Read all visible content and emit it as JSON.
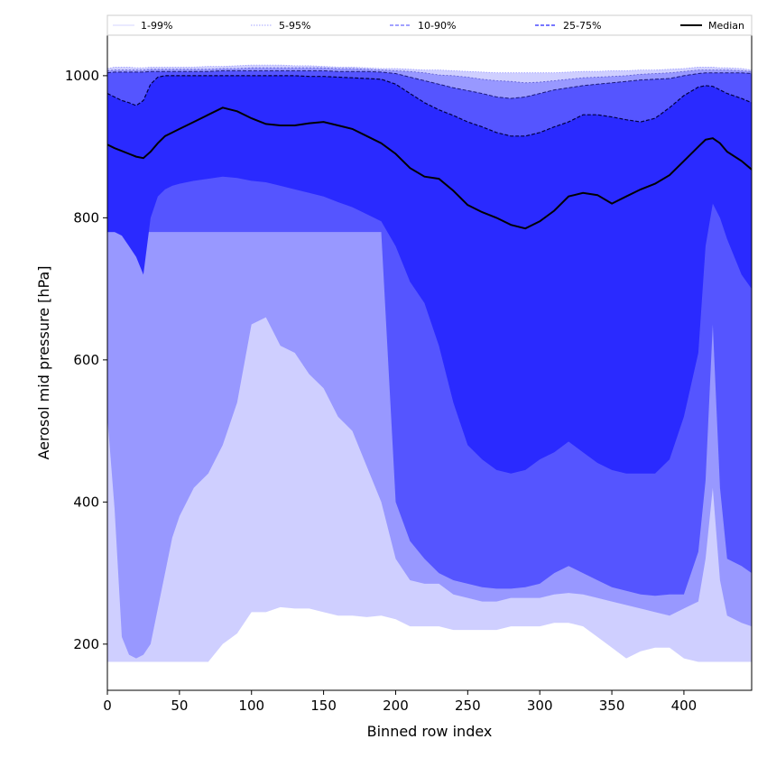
{
  "chart_data": {
    "type": "area",
    "title": "",
    "xlabel": "Binned row index",
    "ylabel": "Aerosol mid pressure [hPa]",
    "xlim": [
      0,
      447
    ],
    "ylim": [
      135,
      1057
    ],
    "xticks": [
      0,
      50,
      100,
      150,
      200,
      250,
      300,
      350,
      400
    ],
    "yticks": [
      200,
      400,
      600,
      800,
      1000
    ],
    "grid": false,
    "legend_position": "top",
    "x": [
      0,
      5,
      10,
      15,
      20,
      25,
      30,
      35,
      40,
      45,
      50,
      60,
      70,
      80,
      90,
      100,
      110,
      120,
      130,
      140,
      150,
      160,
      170,
      180,
      190,
      200,
      210,
      220,
      230,
      240,
      250,
      260,
      270,
      280,
      290,
      300,
      310,
      320,
      330,
      340,
      350,
      360,
      370,
      380,
      390,
      400,
      410,
      415,
      420,
      425,
      430,
      440,
      447
    ],
    "bands": [
      {
        "name": "1-99%",
        "color": "#cfcfff",
        "lower": [
          175,
          175,
          175,
          175,
          175,
          175,
          175,
          175,
          175,
          175,
          175,
          175,
          175,
          200,
          215,
          245,
          245,
          252,
          250,
          250,
          245,
          240,
          240,
          238,
          240,
          235,
          225,
          225,
          225,
          220,
          220,
          220,
          220,
          225,
          225,
          225,
          230,
          230,
          225,
          210,
          195,
          180,
          190,
          195,
          195,
          180,
          175,
          175,
          175,
          175,
          175,
          175,
          175
        ],
        "upper": [
          1010,
          1012,
          1012,
          1012,
          1011,
          1011,
          1012,
          1012,
          1012,
          1012,
          1012,
          1012,
          1013,
          1013,
          1014,
          1015,
          1015,
          1015,
          1014,
          1014,
          1013,
          1012,
          1012,
          1011,
          1010,
          1010,
          1009,
          1008,
          1008,
          1007,
          1006,
          1005,
          1004,
          1004,
          1004,
          1004,
          1004,
          1005,
          1006,
          1006,
          1007,
          1007,
          1008,
          1008,
          1009,
          1010,
          1012,
          1012,
          1012,
          1011,
          1011,
          1010,
          1008
        ]
      },
      {
        "name": "5-95%",
        "color": "#9898ff",
        "lower": [
          520,
          390,
          210,
          185,
          180,
          185,
          200,
          250,
          300,
          350,
          380,
          420,
          440,
          480,
          540,
          650,
          660,
          620,
          610,
          580,
          560,
          520,
          500,
          450,
          400,
          320,
          290,
          285,
          285,
          270,
          265,
          260,
          260,
          265,
          265,
          265,
          270,
          272,
          270,
          265,
          260,
          255,
          250,
          245,
          240,
          250,
          260,
          320,
          420,
          290,
          240,
          230,
          225
        ],
        "upper": [
          1007,
          1008,
          1008,
          1008,
          1008,
          1008,
          1009,
          1009,
          1009,
          1009,
          1009,
          1009,
          1009,
          1010,
          1010,
          1011,
          1011,
          1011,
          1011,
          1011,
          1011,
          1010,
          1010,
          1009,
          1008,
          1007,
          1006,
          1004,
          1001,
          1000,
          998,
          995,
          993,
          992,
          990,
          991,
          993,
          995,
          997,
          998,
          999,
          1000,
          1002,
          1003,
          1004,
          1006,
          1008,
          1008,
          1008,
          1008,
          1008,
          1007,
          1006
        ]
      },
      {
        "name": "10-90%",
        "color": "#5555ff",
        "lower": [
          780,
          780,
          780,
          780,
          780,
          780,
          780,
          780,
          780,
          780,
          780,
          780,
          780,
          780,
          780,
          780,
          780,
          780,
          780,
          780,
          780,
          780,
          780,
          780,
          780,
          400,
          345,
          320,
          300,
          290,
          285,
          280,
          278,
          278,
          280,
          285,
          300,
          310,
          300,
          290,
          280,
          275,
          270,
          268,
          270,
          270,
          330,
          430,
          650,
          420,
          320,
          310,
          300
        ],
        "upper": [
          1004,
          1005,
          1005,
          1005,
          1005,
          1005,
          1006,
          1006,
          1006,
          1006,
          1006,
          1006,
          1006,
          1007,
          1007,
          1007,
          1007,
          1007,
          1007,
          1007,
          1007,
          1006,
          1006,
          1006,
          1005,
          1003,
          998,
          993,
          988,
          983,
          979,
          975,
          970,
          968,
          970,
          975,
          980,
          983,
          986,
          988,
          990,
          992,
          994,
          995,
          996,
          1000,
          1003,
          1004,
          1004,
          1004,
          1004,
          1004,
          1003
        ]
      },
      {
        "name": "25-75%",
        "color": "#2a2aff",
        "lower": [
          780,
          780,
          775,
          760,
          745,
          720,
          800,
          830,
          840,
          845,
          848,
          852,
          855,
          858,
          856,
          852,
          850,
          845,
          840,
          835,
          830,
          822,
          815,
          805,
          795,
          760,
          710,
          680,
          620,
          540,
          480,
          460,
          445,
          440,
          445,
          460,
          470,
          485,
          470,
          455,
          445,
          440,
          440,
          440,
          460,
          520,
          610,
          760,
          820,
          800,
          770,
          720,
          700
        ],
        "upper": [
          975,
          970,
          965,
          962,
          958,
          965,
          988,
          998,
          1000,
          1000,
          1000,
          1000,
          1000,
          1000,
          1000,
          1000,
          1000,
          1000,
          1000,
          999,
          999,
          998,
          997,
          996,
          995,
          988,
          975,
          962,
          952,
          944,
          935,
          928,
          920,
          915,
          915,
          920,
          928,
          935,
          945,
          945,
          942,
          938,
          935,
          940,
          955,
          972,
          984,
          986,
          985,
          980,
          975,
          968,
          962
        ]
      }
    ],
    "median": {
      "name": "Median",
      "color": "#000000",
      "y": [
        903,
        898,
        894,
        890,
        886,
        884,
        893,
        905,
        915,
        920,
        925,
        935,
        945,
        955,
        950,
        940,
        932,
        930,
        930,
        933,
        935,
        930,
        925,
        915,
        905,
        890,
        870,
        858,
        855,
        838,
        818,
        808,
        800,
        790,
        785,
        795,
        810,
        830,
        835,
        832,
        820,
        830,
        840,
        848,
        860,
        880,
        900,
        910,
        912,
        905,
        893,
        880,
        868
      ]
    },
    "legend": [
      {
        "label": "1-99%",
        "style": "thin"
      },
      {
        "label": "5-95%",
        "style": "thin-dashed"
      },
      {
        "label": "10-90%",
        "style": "dashed"
      },
      {
        "label": "25-75%",
        "style": "dashed"
      },
      {
        "label": "Median",
        "style": "solid"
      }
    ]
  }
}
